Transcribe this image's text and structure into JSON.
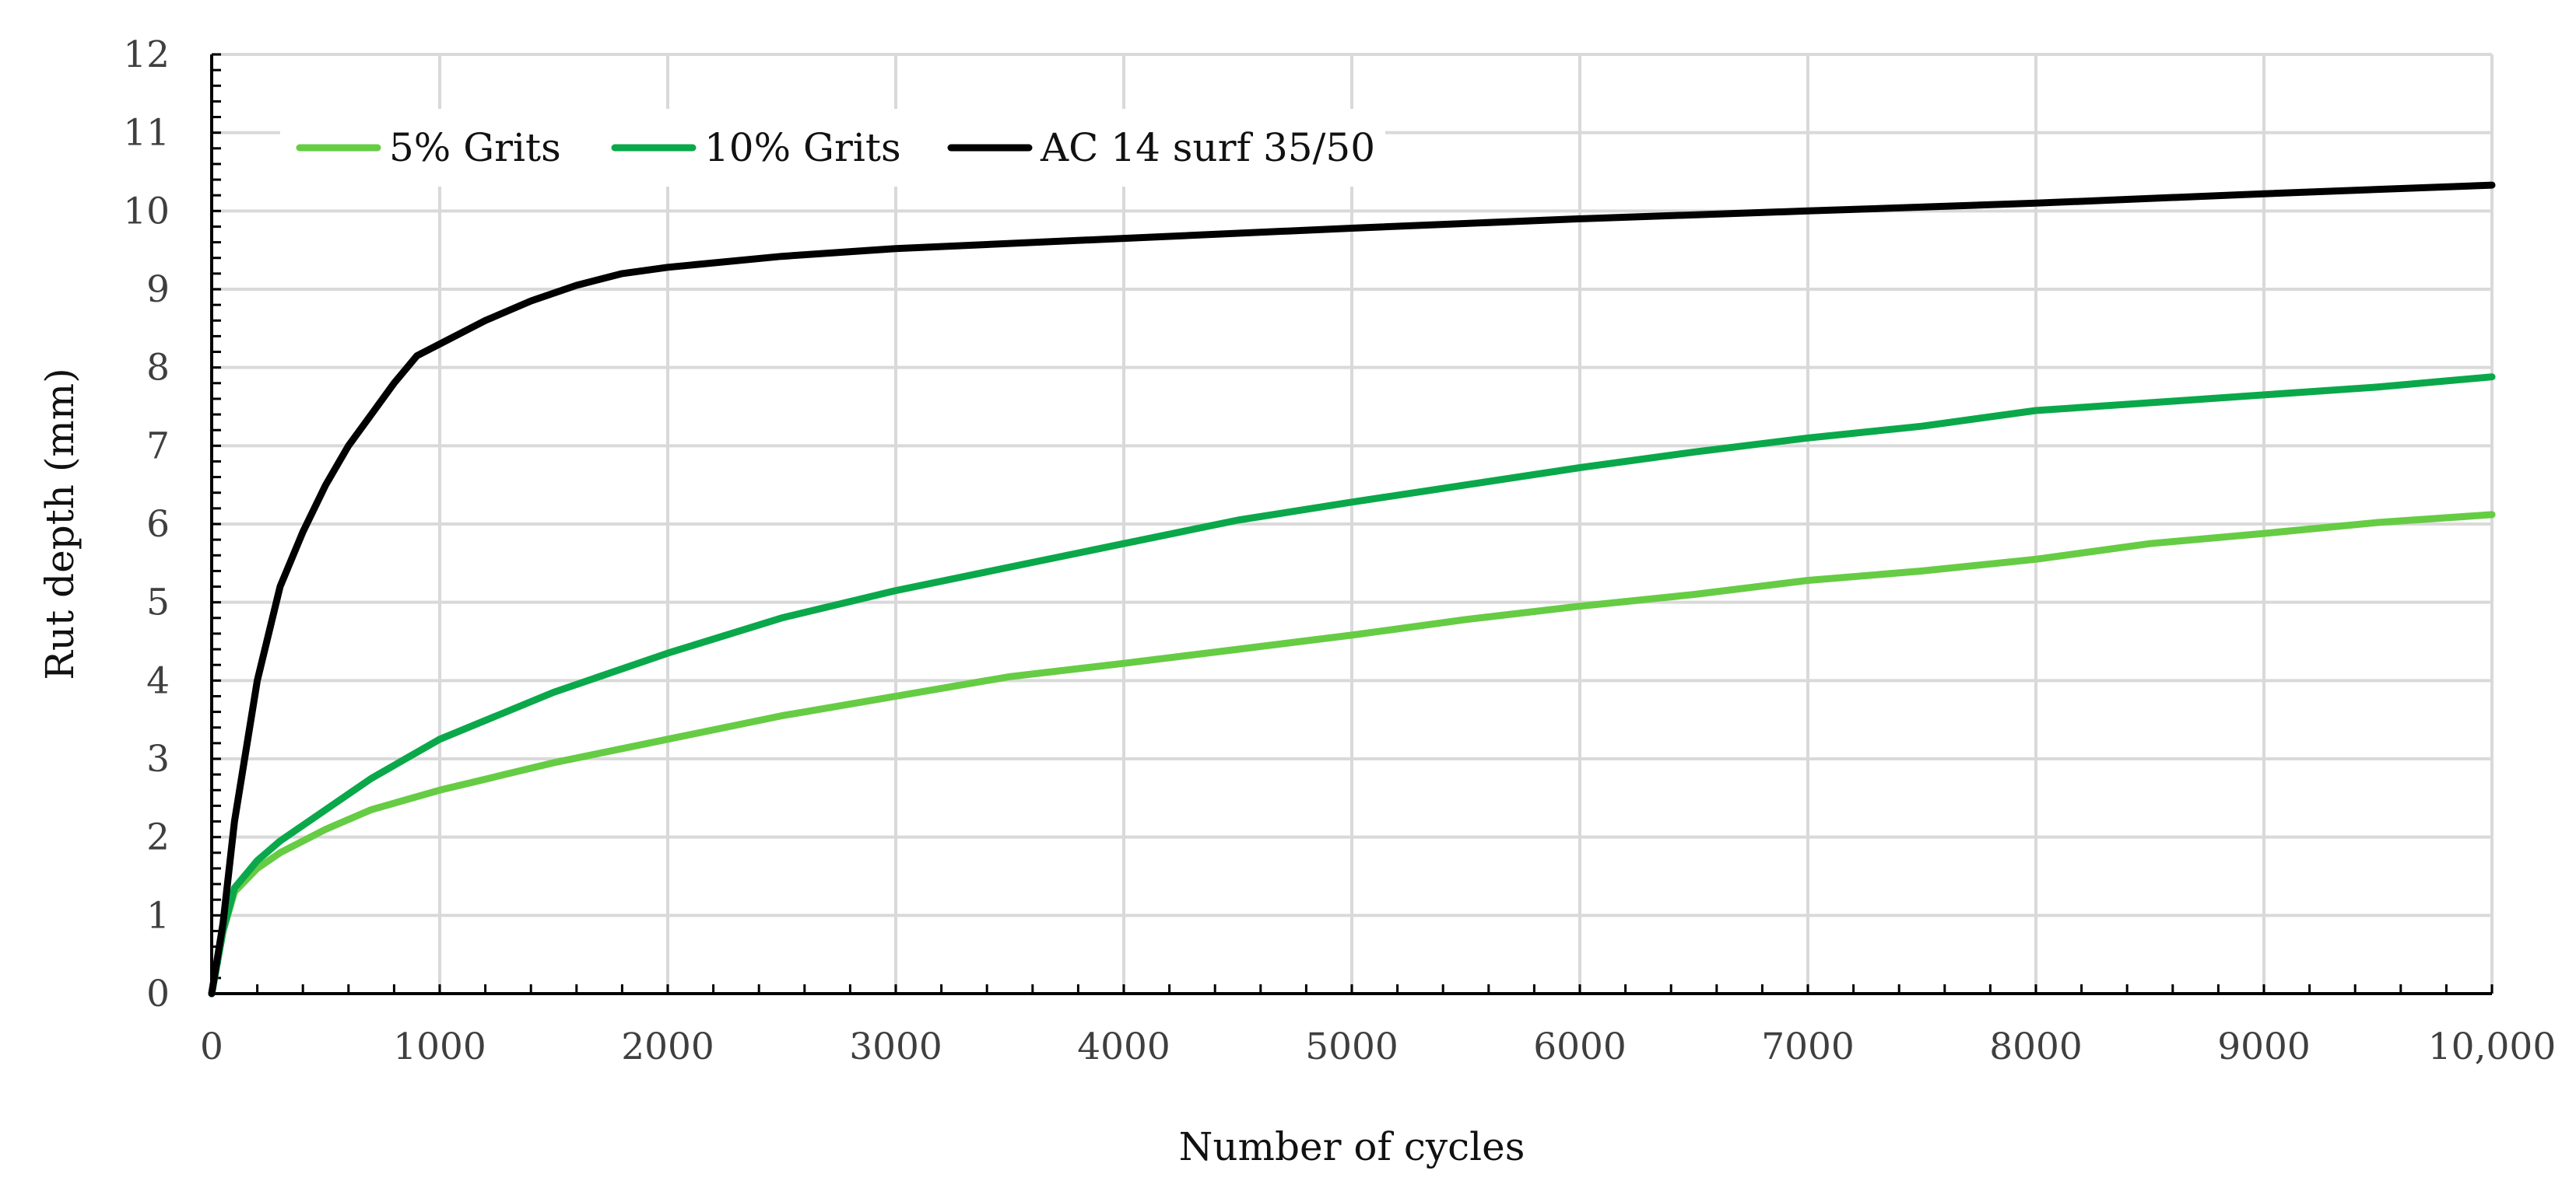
{
  "chart_data": {
    "type": "line",
    "title": "",
    "xlabel": "Number of cycles",
    "ylabel": "Rut depth (mm)",
    "xlim": [
      0,
      10000
    ],
    "ylim": [
      0,
      12
    ],
    "grid": true,
    "legend_position": "top-left",
    "x_ticks": [
      0,
      1000,
      2000,
      3000,
      4000,
      5000,
      6000,
      7000,
      8000,
      9000,
      10000
    ],
    "x_tick_labels": [
      "0",
      "1000",
      "2000",
      "3000",
      "4000",
      "5000",
      "6000",
      "7000",
      "8000",
      "9000",
      "10,000"
    ],
    "y_ticks": [
      0,
      1,
      2,
      3,
      4,
      5,
      6,
      7,
      8,
      9,
      10,
      11,
      12
    ],
    "y_tick_labels": [
      "0",
      "1",
      "2",
      "3",
      "4",
      "5",
      "6",
      "7",
      "8",
      "9",
      "10",
      "11",
      "12"
    ],
    "series": [
      {
        "name": "5% Grits",
        "color": "#66cc44",
        "x": [
          0,
          50,
          100,
          200,
          300,
          500,
          700,
          1000,
          1500,
          2000,
          2500,
          3000,
          3500,
          4000,
          4500,
          5000,
          5500,
          6000,
          6500,
          7000,
          7500,
          8000,
          8500,
          9000,
          9500,
          10000
        ],
        "y": [
          0,
          0.8,
          1.3,
          1.6,
          1.8,
          2.1,
          2.35,
          2.6,
          2.95,
          3.25,
          3.55,
          3.8,
          4.05,
          4.22,
          4.4,
          4.58,
          4.78,
          4.95,
          5.1,
          5.28,
          5.4,
          5.55,
          5.75,
          5.88,
          6.02,
          6.12
        ]
      },
      {
        "name": "10% Grits",
        "color": "#0aa84a",
        "x": [
          0,
          50,
          100,
          200,
          300,
          500,
          700,
          1000,
          1500,
          2000,
          2500,
          3000,
          3500,
          4000,
          4500,
          5000,
          5500,
          6000,
          6500,
          7000,
          7500,
          8000,
          8500,
          9000,
          9500,
          10000
        ],
        "y": [
          0,
          0.8,
          1.35,
          1.7,
          1.95,
          2.35,
          2.75,
          3.25,
          3.85,
          4.35,
          4.8,
          5.15,
          5.45,
          5.75,
          6.05,
          6.28,
          6.5,
          6.72,
          6.92,
          7.1,
          7.25,
          7.45,
          7.55,
          7.65,
          7.75,
          7.88
        ]
      },
      {
        "name": "AC 14 surf 35/50",
        "color": "#000000",
        "x": [
          0,
          50,
          100,
          200,
          300,
          400,
          500,
          600,
          700,
          800,
          900,
          1000,
          1200,
          1400,
          1600,
          1800,
          2000,
          2500,
          3000,
          4000,
          5000,
          6000,
          7000,
          8000,
          9000,
          10000
        ],
        "y": [
          0,
          0.9,
          2.2,
          4.0,
          5.2,
          5.9,
          6.5,
          7.0,
          7.4,
          7.8,
          8.15,
          8.3,
          8.6,
          8.85,
          9.05,
          9.2,
          9.28,
          9.42,
          9.52,
          9.65,
          9.78,
          9.9,
          10.0,
          10.1,
          10.22,
          10.33
        ]
      }
    ]
  }
}
